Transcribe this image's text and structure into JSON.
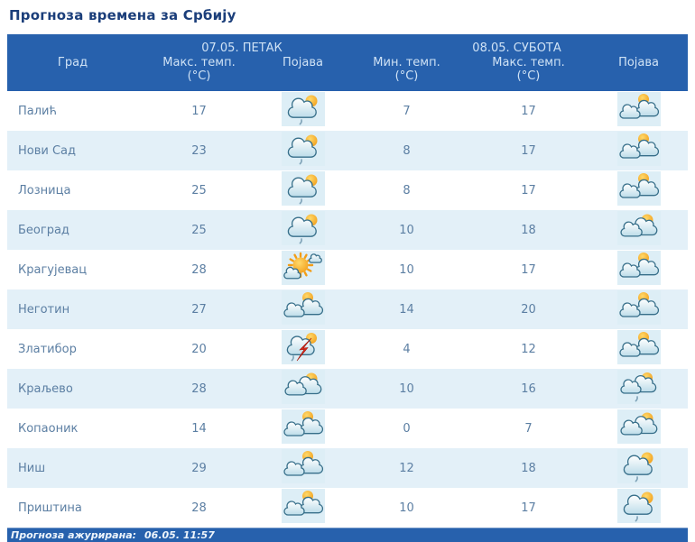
{
  "page": {
    "title": "Прогноза времена за Србију"
  },
  "table": {
    "city_column_label": "Град",
    "day1": {
      "date": "07.05. ПЕТАК",
      "col_max_label": "Макс. темп.",
      "col_max_unit": "(°C)",
      "col_icon_label": "Појава"
    },
    "day2": {
      "date": "08.05. СУБОТА",
      "col_min_label": "Мин. темп.",
      "col_min_unit": "(°C)",
      "col_max_label": "Макс. темп.",
      "col_max_unit": "(°C)",
      "col_icon_label": "Појава"
    },
    "rows": [
      {
        "city": "Палић",
        "fri_max": "17",
        "fri_icon": "sun-cloud-shower",
        "sat_min": "7",
        "sat_max": "17",
        "sat_icon": "partly-cloudy"
      },
      {
        "city": "Нови Сад",
        "fri_max": "23",
        "fri_icon": "sun-cloud-shower",
        "sat_min": "8",
        "sat_max": "17",
        "sat_icon": "partly-cloudy"
      },
      {
        "city": "Лозница",
        "fri_max": "25",
        "fri_icon": "sun-cloud-shower",
        "sat_min": "8",
        "sat_max": "17",
        "sat_icon": "partly-cloudy"
      },
      {
        "city": "Београд",
        "fri_max": "25",
        "fri_icon": "sun-cloud-shower",
        "sat_min": "10",
        "sat_max": "18",
        "sat_icon": "cloudy-sun"
      },
      {
        "city": "Крагујевац",
        "fri_max": "28",
        "fri_icon": "sunny-few-clouds",
        "sat_min": "10",
        "sat_max": "17",
        "sat_icon": "partly-cloudy"
      },
      {
        "city": "Неготин",
        "fri_max": "27",
        "fri_icon": "partly-cloudy",
        "sat_min": "14",
        "sat_max": "20",
        "sat_icon": "partly-cloudy"
      },
      {
        "city": "Златибор",
        "fri_max": "20",
        "fri_icon": "thunderstorm",
        "sat_min": "4",
        "sat_max": "12",
        "sat_icon": "partly-cloudy"
      },
      {
        "city": "Краљево",
        "fri_max": "28",
        "fri_icon": "cloudy-sun",
        "sat_min": "10",
        "sat_max": "16",
        "sat_icon": "cloudy-sun-shower"
      },
      {
        "city": "Копаоник",
        "fri_max": "14",
        "fri_icon": "partly-cloudy",
        "sat_min": "0",
        "sat_max": "7",
        "sat_icon": "cloudy-sun"
      },
      {
        "city": "Ниш",
        "fri_max": "29",
        "fri_icon": "partly-cloudy",
        "sat_min": "12",
        "sat_max": "18",
        "sat_icon": "sun-cloud-shower"
      },
      {
        "city": "Приштина",
        "fri_max": "28",
        "fri_icon": "partly-cloudy",
        "sat_min": "10",
        "sat_max": "17",
        "sat_icon": "sun-cloud-shower"
      }
    ]
  },
  "footer": {
    "label": "Прогноза ажурирана:",
    "updated": "06.05. 11:57"
  },
  "colors": {
    "header_bg": "#2761ad",
    "header_text": "#cfe2f5",
    "title_text": "#1b3e7a",
    "body_text": "#5c7fa3",
    "row_alt_bg": "#e3f0f8",
    "icon_tile_bg": "#ddeef6",
    "sun": "#f29d16",
    "cloud_outline": "#376f8a",
    "lightning": "#d8281e"
  }
}
